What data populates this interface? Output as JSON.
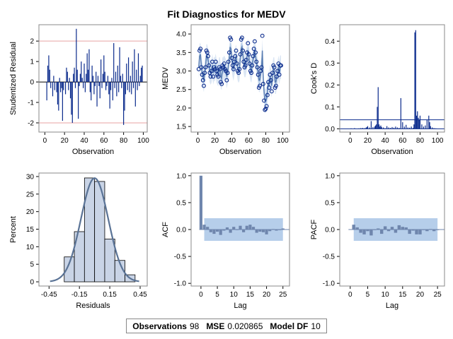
{
  "title": "Fit Diagnostics for MEDV",
  "colors": {
    "series": "#0a2a8c",
    "band": "#a9c6e6",
    "bar": "#6f86ad",
    "hist_fill": "#c9d4e6",
    "curve": "#5a7396",
    "ref_line": "#e8a3a3"
  },
  "stats": {
    "obs_label": "Observations",
    "obs_value": "98",
    "mse_label": "MSE",
    "mse_value": "0.020865",
    "df_label": "Model DF",
    "df_value": "10"
  },
  "chart_data": [
    {
      "id": "studentized",
      "type": "needle",
      "xlabel": "Observation",
      "ylabel": "Studentized Residual",
      "xlim": [
        -6,
        104
      ],
      "ylim": [
        -2.45,
        2.8
      ],
      "xticks": [
        "0",
        "20",
        "40",
        "60",
        "80",
        "100"
      ],
      "xtick_values": [
        0,
        20,
        40,
        60,
        80,
        100
      ],
      "yticks": [
        "-2",
        "-1",
        "0",
        "1",
        "2"
      ],
      "ytick_values": [
        -2,
        -1,
        0,
        1,
        2
      ],
      "reflines": [
        -2,
        2
      ],
      "x": [
        2,
        3,
        4,
        5,
        6,
        8,
        9,
        10,
        12,
        13,
        14,
        15,
        16,
        17,
        18,
        19,
        21,
        22,
        23,
        24,
        25,
        26,
        27,
        28,
        29,
        30,
        31,
        32,
        33,
        34,
        35,
        36,
        37,
        38,
        39,
        40,
        41,
        42,
        43,
        44,
        45,
        46,
        47,
        48,
        49,
        50,
        51,
        52,
        53,
        54,
        55,
        56,
        57,
        58,
        59,
        60,
        61,
        62,
        63,
        64,
        65,
        66,
        67,
        68,
        69,
        70,
        71,
        72,
        73,
        74,
        75,
        76,
        77,
        78,
        79,
        80,
        81,
        82,
        83,
        84,
        85,
        86,
        87,
        88,
        89,
        90,
        91,
        92,
        93,
        94,
        95,
        96,
        97,
        98,
        99
      ],
      "values": [
        -0.9,
        0.8,
        1.3,
        0.6,
        -0.3,
        -0.7,
        0.3,
        -0.4,
        -0.5,
        -1.1,
        -1.4,
        0.2,
        -0.5,
        -0.3,
        -1.9,
        -0.4,
        -0.6,
        0.7,
        0.5,
        -0.4,
        0.2,
        -0.8,
        -1.6,
        -2.0,
        0.4,
        0.7,
        -0.3,
        2.6,
        0.6,
        -1.8,
        -0.2,
        0.4,
        1.0,
        0.2,
        -0.3,
        0.9,
        -0.5,
        0.4,
        1.4,
        0.6,
        1.6,
        -0.5,
        -0.9,
        0.8,
        0.3,
        -0.6,
        -0.2,
        0.5,
        -1.2,
        0.3,
        -0.2,
        -0.8,
        1.1,
        -0.3,
        0.4,
        1.3,
        0.5,
        -0.4,
        -0.2,
        0.3,
        -0.6,
        -1.3,
        -0.4,
        0.2,
        -0.9,
        1.9,
        -0.3,
        0.5,
        -0.7,
        0.8,
        -0.5,
        1.7,
        0.3,
        -0.3,
        0.4,
        -2.1,
        -1.4,
        -0.6,
        0.9,
        -0.4,
        1.2,
        -0.5,
        0.3,
        -0.6,
        1.0,
        -0.3,
        1.6,
        -1.2,
        0.6,
        -0.4,
        1.4,
        -0.2,
        0.3,
        0.7,
        0.8
      ]
    },
    {
      "id": "medv",
      "type": "scatter-band",
      "xlabel": "Observation",
      "ylabel": "MEDV",
      "xlim": [
        -8,
        108
      ],
      "ylim": [
        1.35,
        4.25
      ],
      "xticks": [
        "0",
        "20",
        "40",
        "60",
        "80",
        "100"
      ],
      "xtick_values": [
        0,
        20,
        40,
        60,
        80,
        100
      ],
      "yticks": [
        "1.5",
        "2.0",
        "2.5",
        "3.0",
        "3.5",
        "4.0"
      ],
      "ytick_values": [
        1.5,
        2.0,
        2.5,
        3.0,
        3.5,
        4.0
      ],
      "x": [
        1,
        2,
        3,
        4,
        5,
        6,
        7,
        8,
        9,
        10,
        11,
        12,
        13,
        14,
        15,
        16,
        17,
        18,
        19,
        20,
        21,
        22,
        23,
        24,
        25,
        26,
        27,
        28,
        29,
        30,
        31,
        32,
        33,
        34,
        35,
        36,
        37,
        38,
        39,
        40,
        41,
        42,
        43,
        44,
        45,
        46,
        47,
        48,
        49,
        50,
        51,
        52,
        53,
        54,
        55,
        56,
        57,
        58,
        59,
        60,
        61,
        62,
        63,
        64,
        65,
        66,
        67,
        68,
        69,
        70,
        71,
        72,
        73,
        74,
        75,
        76,
        77,
        78,
        79,
        80,
        81,
        82,
        83,
        84,
        85,
        86,
        87,
        88,
        89,
        90,
        91,
        92,
        93,
        94,
        95,
        96,
        97,
        98
      ],
      "values": [
        3.05,
        3.55,
        3.6,
        3.1,
        2.9,
        2.75,
        2.6,
        2.95,
        3.1,
        3.55,
        3.5,
        3.4,
        3.15,
        2.95,
        2.85,
        3.0,
        3.25,
        2.85,
        3.1,
        3.05,
        3.25,
        3.0,
        2.9,
        2.85,
        3.1,
        3.05,
        2.7,
        2.65,
        3.15,
        3.1,
        3.2,
        3.05,
        3.0,
        2.75,
        2.95,
        3.25,
        3.5,
        3.9,
        3.85,
        3.35,
        3.15,
        3.05,
        3.25,
        3.4,
        3.55,
        3.2,
        3.0,
        2.95,
        3.05,
        3.45,
        3.85,
        3.9,
        3.55,
        3.25,
        3.1,
        3.15,
        3.3,
        3.5,
        3.75,
        3.45,
        3.2,
        3.0,
        2.95,
        3.15,
        3.4,
        3.6,
        3.8,
        3.5,
        3.25,
        3.1,
        2.9,
        2.55,
        2.6,
        3.0,
        3.1,
        3.95,
        2.65,
        2.2,
        1.95,
        1.98,
        2.05,
        2.35,
        2.7,
        2.55,
        2.9,
        2.75,
        2.45,
        2.95,
        3.15,
        3.1,
        2.55,
        2.6,
        2.85,
        3.0,
        3.2,
        2.9,
        3.15,
        3.15
      ],
      "fit": [
        3.1,
        3.4,
        3.45,
        3.15,
        2.95,
        2.85,
        2.75,
        2.95,
        3.1,
        3.4,
        3.4,
        3.3,
        3.15,
        3.0,
        2.95,
        3.0,
        3.15,
        2.95,
        3.05,
        3.05,
        3.15,
        3.0,
        2.95,
        2.9,
        3.05,
        3.05,
        2.85,
        2.8,
        3.05,
        3.05,
        3.1,
        3.05,
        3.0,
        2.85,
        2.95,
        3.15,
        3.35,
        3.65,
        3.6,
        3.3,
        3.15,
        3.05,
        3.2,
        3.3,
        3.4,
        3.2,
        3.05,
        3.0,
        3.05,
        3.35,
        3.6,
        3.65,
        3.45,
        3.25,
        3.15,
        3.15,
        3.25,
        3.4,
        3.55,
        3.4,
        3.2,
        3.05,
        3.0,
        3.15,
        3.3,
        3.45,
        3.55,
        3.4,
        3.25,
        3.1,
        2.95,
        2.75,
        2.75,
        2.95,
        3.05,
        3.55,
        2.8,
        2.45,
        2.2,
        2.2,
        2.25,
        2.45,
        2.7,
        2.6,
        2.85,
        2.75,
        2.6,
        2.9,
        3.05,
        3.05,
        2.7,
        2.7,
        2.85,
        2.95,
        3.1,
        2.95,
        3.1,
        3.1
      ]
    },
    {
      "id": "cooks",
      "type": "needle",
      "xlabel": "Observation",
      "ylabel": "Cook's D",
      "xlim": [
        -12,
        108
      ],
      "ylim": [
        -0.015,
        0.475
      ],
      "xticks": [
        "0",
        "20",
        "40",
        "60",
        "80",
        "100"
      ],
      "xtick_values": [
        0,
        20,
        40,
        60,
        80,
        100
      ],
      "yticks": [
        "0.0",
        "0.1",
        "0.2",
        "0.3",
        "0.4"
      ],
      "ytick_values": [
        0.0,
        0.1,
        0.2,
        0.3,
        0.4
      ],
      "reflines": [
        0.041
      ],
      "x": [
        1,
        3,
        5,
        8,
        10,
        12,
        14,
        16,
        18,
        19,
        20,
        22,
        24,
        26,
        28,
        29,
        30,
        31,
        32,
        33,
        34,
        35,
        36,
        38,
        40,
        42,
        44,
        46,
        48,
        50,
        52,
        54,
        56,
        58,
        60,
        62,
        64,
        66,
        68,
        70,
        72,
        73,
        74,
        75,
        76,
        77,
        78,
        79,
        80,
        82,
        84,
        86,
        88,
        90,
        91,
        92,
        94,
        96,
        98
      ],
      "values": [
        0.002,
        0.001,
        0.003,
        0.001,
        0.002,
        0.003,
        0.004,
        0.003,
        0.005,
        0.008,
        0.012,
        0.006,
        0.035,
        0.008,
        0.01,
        0.015,
        0.02,
        0.1,
        0.19,
        0.02,
        0.01,
        0.015,
        0.008,
        0.006,
        0.003,
        0.012,
        0.006,
        0.004,
        0.008,
        0.005,
        0.01,
        0.006,
        0.004,
        0.14,
        0.03,
        0.01,
        0.018,
        0.006,
        0.005,
        0.01,
        0.004,
        0.02,
        0.44,
        0.45,
        0.06,
        0.08,
        0.05,
        0.04,
        0.06,
        0.02,
        0.01,
        0.015,
        0.04,
        0.06,
        0.03,
        0.012,
        0.006,
        0.003,
        0.002
      ]
    },
    {
      "id": "histogram",
      "type": "histogram",
      "xlabel": "Residuals",
      "ylabel": "Percent",
      "xlim": [
        -0.55,
        0.52
      ],
      "ylim": [
        -1.2,
        31
      ],
      "xticks": [
        "-0.45",
        "-0.15",
        "0.15",
        "0.45"
      ],
      "xtick_values": [
        -0.45,
        -0.15,
        0.15,
        0.45
      ],
      "yticks": [
        "0",
        "5",
        "10",
        "15",
        "20",
        "25",
        "30"
      ],
      "ytick_values": [
        0,
        5,
        10,
        15,
        20,
        25,
        30
      ],
      "bin_width": 0.1,
      "bin_starts": [
        -0.3,
        -0.2,
        -0.1,
        0.0,
        0.1,
        0.2,
        0.3
      ],
      "values": [
        7.1,
        14.3,
        29.6,
        28.6,
        12.2,
        6.1,
        2.0
      ],
      "curve": {
        "mean": 0.0,
        "sd": 0.135
      }
    },
    {
      "id": "acf",
      "type": "bar",
      "xlabel": "Lag",
      "ylabel": "ACF",
      "xlim": [
        -3,
        27
      ],
      "ylim": [
        -1.05,
        1.05
      ],
      "xticks": [
        "0",
        "5",
        "10",
        "15",
        "20",
        "25"
      ],
      "xtick_values": [
        0,
        5,
        10,
        15,
        20,
        25
      ],
      "yticks": [
        "-1.0",
        "-0.5",
        "0.0",
        "0.5",
        "1.0"
      ],
      "ytick_values": [
        -1.0,
        -0.5,
        0.0,
        0.5,
        1.0
      ],
      "x": [
        0,
        1,
        2,
        3,
        4,
        5,
        6,
        7,
        8,
        9,
        10,
        11,
        12,
        13,
        14,
        15,
        16,
        17,
        18,
        19,
        20,
        21,
        22,
        23,
        24,
        25
      ],
      "values": [
        1.0,
        0.09,
        0.05,
        -0.05,
        -0.08,
        -0.04,
        -0.1,
        -0.02,
        0.04,
        -0.06,
        0.05,
        0.0,
        0.07,
        -0.05,
        0.07,
        0.09,
        0.05,
        -0.06,
        -0.04,
        -0.05,
        -0.09,
        -0.03,
        0.01,
        -0.02,
        0.0,
        0.02
      ],
      "band": {
        "x": [
          1,
          25
        ],
        "upper": 0.21,
        "lower": -0.21
      }
    },
    {
      "id": "pacf",
      "type": "bar",
      "xlabel": "Lag",
      "ylabel": "PACF",
      "xlim": [
        -3,
        27
      ],
      "ylim": [
        -1.05,
        1.05
      ],
      "xticks": [
        "0",
        "5",
        "10",
        "15",
        "20",
        "25"
      ],
      "xtick_values": [
        0,
        5,
        10,
        15,
        20,
        25
      ],
      "yticks": [
        "-1.0",
        "-0.5",
        "0.0",
        "0.5",
        "1.0"
      ],
      "ytick_values": [
        -1.0,
        -0.5,
        0.0,
        0.5,
        1.0
      ],
      "x": [
        1,
        2,
        3,
        4,
        5,
        6,
        7,
        8,
        9,
        10,
        11,
        12,
        13,
        14,
        15,
        16,
        17,
        18,
        19,
        20,
        21,
        22,
        23,
        24,
        25
      ],
      "values": [
        0.09,
        0.04,
        -0.06,
        -0.09,
        -0.03,
        -0.11,
        -0.01,
        0.02,
        -0.08,
        0.06,
        -0.03,
        0.05,
        -0.06,
        0.08,
        0.05,
        0.04,
        -0.08,
        -0.02,
        -0.09,
        -0.09,
        0.0,
        -0.03,
        0.01,
        -0.03,
        0.0
      ],
      "band": {
        "x": [
          1,
          25
        ],
        "upper": 0.21,
        "lower": -0.21
      }
    }
  ]
}
